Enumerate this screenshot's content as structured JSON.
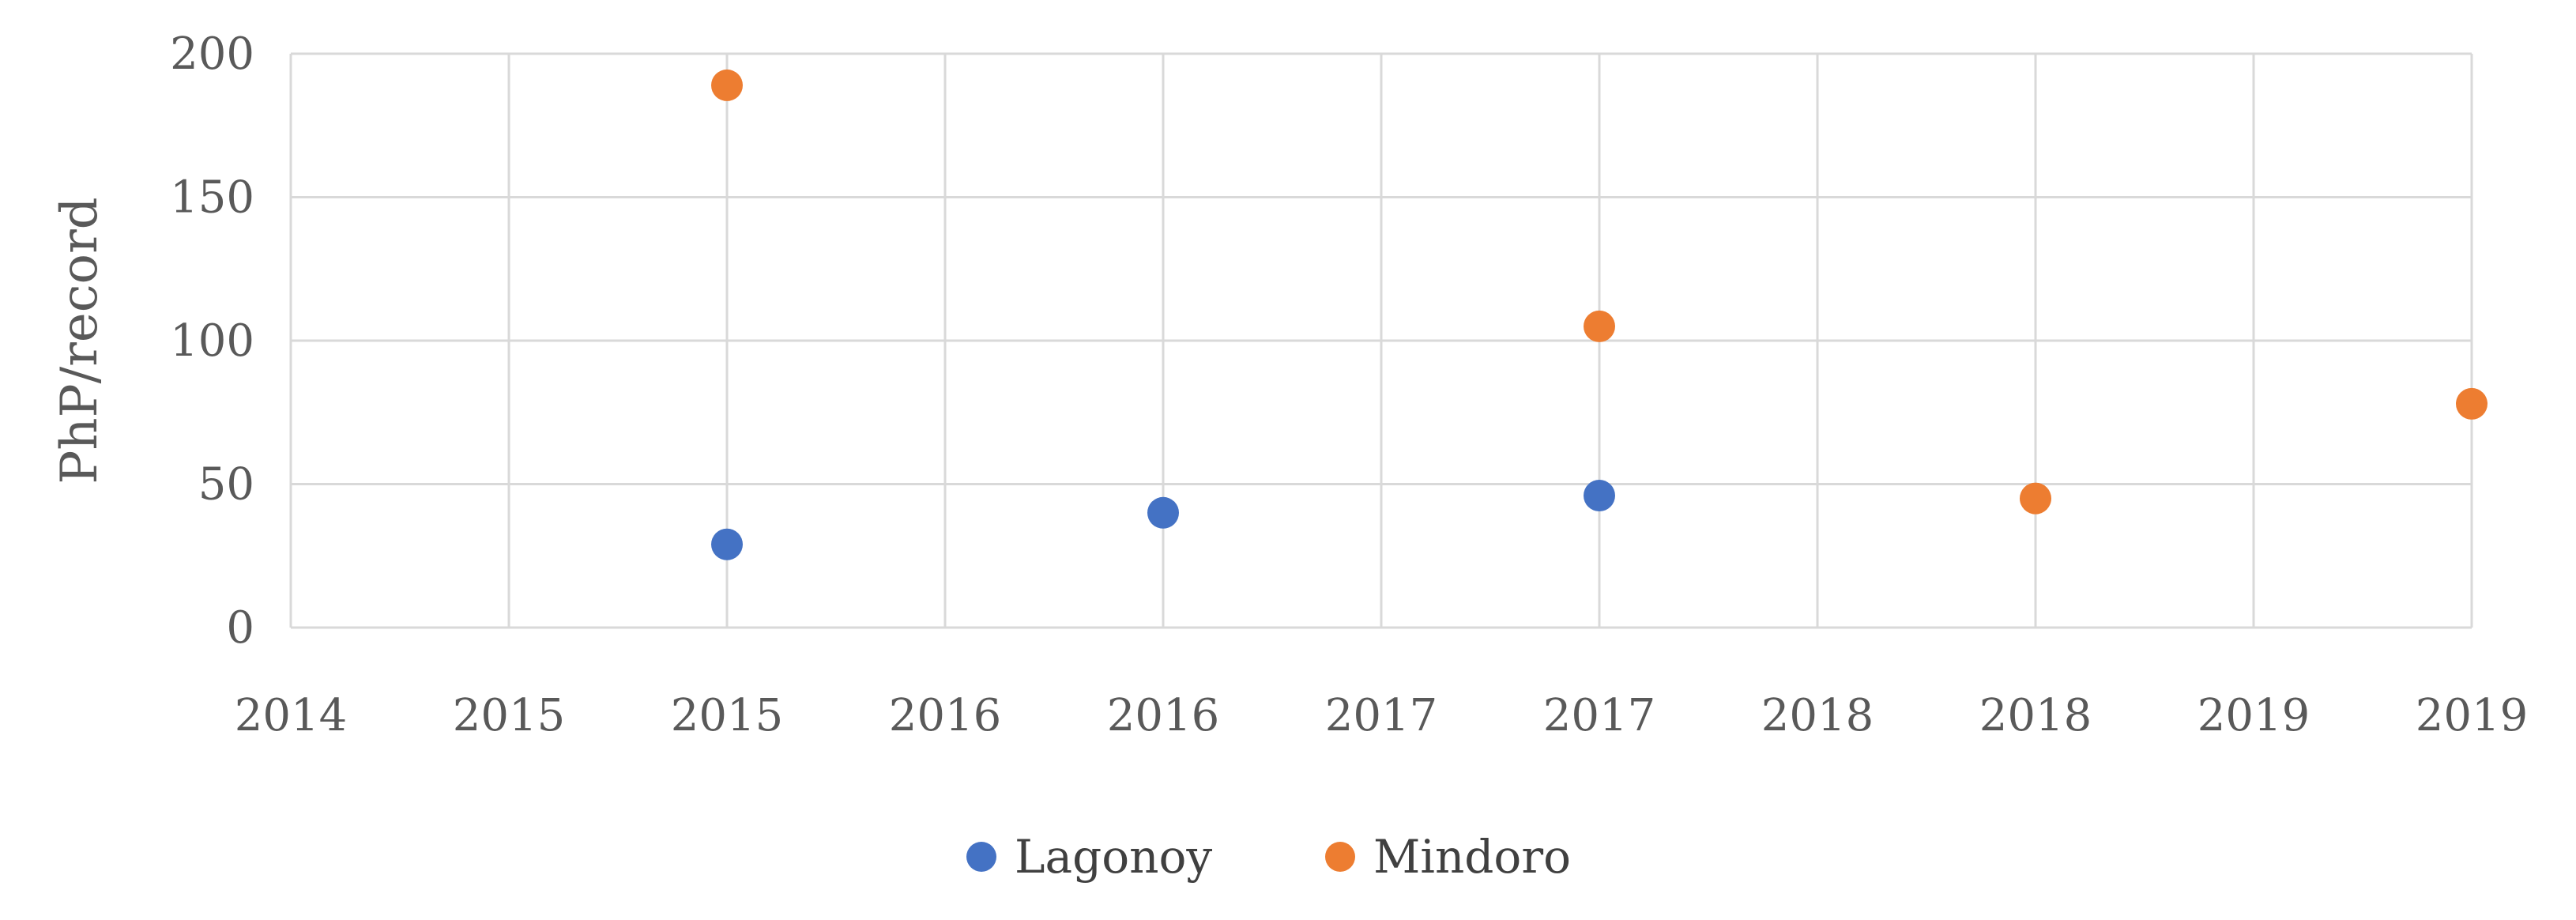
{
  "chart_data": {
    "type": "scatter",
    "title": "",
    "xlabel": "",
    "ylabel": "PhP/record",
    "ylim": [
      0,
      200
    ],
    "yticks": [
      0,
      50,
      100,
      150,
      200
    ],
    "xlim": [
      2014,
      2019
    ],
    "xticks": [
      2014,
      2014.5,
      2015,
      2015.5,
      2016,
      2016.5,
      2017,
      2017.5,
      2018,
      2018.5,
      2019
    ],
    "xtick_labels": [
      "2014",
      "2015",
      "2015",
      "2016",
      "2016",
      "2017",
      "2017",
      "2018",
      "2018",
      "2019",
      "2019"
    ],
    "grid": true,
    "legend_position": "bottom",
    "series": [
      {
        "name": "Lagonoy",
        "color": "#4472C4",
        "points": [
          {
            "x": 2015,
            "y": 29
          },
          {
            "x": 2016,
            "y": 40
          },
          {
            "x": 2017,
            "y": 46
          }
        ]
      },
      {
        "name": "Mindoro",
        "color": "#ED7D31",
        "points": [
          {
            "x": 2015,
            "y": 189
          },
          {
            "x": 2017,
            "y": 105
          },
          {
            "x": 2018,
            "y": 45
          },
          {
            "x": 2019,
            "y": 78
          }
        ]
      }
    ]
  }
}
